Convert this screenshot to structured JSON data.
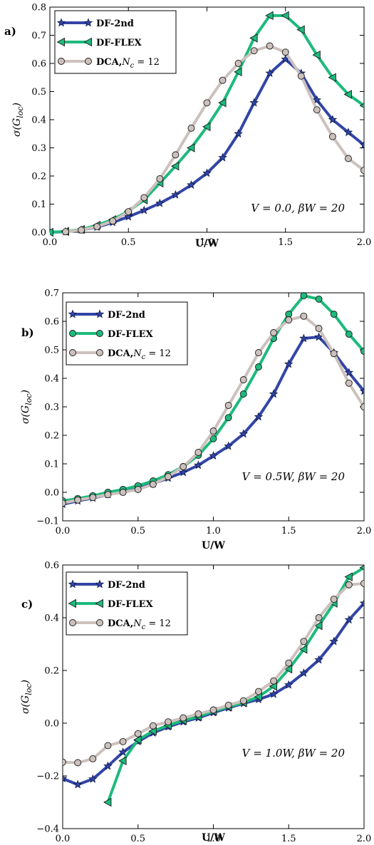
{
  "chart_data": [
    {
      "type": "line",
      "panel_label": "a)",
      "xlabel": "U/W",
      "ylabel": "σ(G_loc)",
      "ylabel_main": "σ(G",
      "ylabel_sub": "loc",
      "ylabel_end": ")",
      "annotation": "V = 0.0, βW = 20",
      "xlim": [
        0.0,
        2.0
      ],
      "ylim": [
        0.0,
        0.8
      ],
      "xticks": [
        "0.0",
        "0.5",
        "1.0",
        "1.5",
        "2.0"
      ],
      "yticks": [
        "0.0",
        "0.1",
        "0.2",
        "0.3",
        "0.4",
        "0.5",
        "0.6",
        "0.7",
        "0.8"
      ],
      "legend_position": "top-left",
      "series": [
        {
          "name": "DF-2nd",
          "color": "#3345a6",
          "marker": "star",
          "x": [
            0.0,
            0.1,
            0.2,
            0.3,
            0.4,
            0.5,
            0.6,
            0.7,
            0.8,
            0.9,
            1.0,
            1.1,
            1.2,
            1.3,
            1.4,
            1.5,
            1.6,
            1.7,
            1.8,
            1.9,
            2.0
          ],
          "y": [
            0.0,
            0.002,
            0.008,
            0.018,
            0.035,
            0.055,
            0.078,
            0.103,
            0.133,
            0.168,
            0.21,
            0.265,
            0.35,
            0.46,
            0.565,
            0.615,
            0.565,
            0.47,
            0.4,
            0.355,
            0.31
          ]
        },
        {
          "name": "DF-FLEX",
          "color": "#1dba7c",
          "marker": "triangle-left",
          "x": [
            0.0,
            0.1,
            0.2,
            0.3,
            0.4,
            0.5,
            0.6,
            0.7,
            0.8,
            0.9,
            1.0,
            1.1,
            1.2,
            1.3,
            1.4,
            1.5,
            1.6,
            1.7,
            1.8,
            1.9,
            2.0
          ],
          "y": [
            0.0,
            0.003,
            0.01,
            0.025,
            0.045,
            0.075,
            0.115,
            0.175,
            0.235,
            0.3,
            0.375,
            0.46,
            0.57,
            0.69,
            0.77,
            0.77,
            0.72,
            0.63,
            0.55,
            0.49,
            0.45
          ]
        },
        {
          "name": "DCA,",
          "name_math": "N",
          "name_sub": "c",
          "name_tail": " = 12",
          "color": "#ccc1bd",
          "marker": "circle",
          "x": [
            0.1,
            0.2,
            0.3,
            0.4,
            0.5,
            0.6,
            0.7,
            0.8,
            0.9,
            1.0,
            1.1,
            1.2,
            1.3,
            1.4,
            1.5,
            1.6,
            1.7,
            1.8,
            1.9,
            2.0
          ],
          "y": [
            0.002,
            0.008,
            0.02,
            0.04,
            0.073,
            0.123,
            0.19,
            0.275,
            0.37,
            0.46,
            0.54,
            0.6,
            0.645,
            0.662,
            0.64,
            0.555,
            0.435,
            0.34,
            0.262,
            0.22
          ]
        }
      ]
    },
    {
      "type": "line",
      "panel_label": "b)",
      "xlabel": "U/W",
      "ylabel": "σ(G_loc)",
      "ylabel_main": "σ(G",
      "ylabel_sub": "loc",
      "ylabel_end": ")",
      "annotation": "V = 0.5W, βW = 20",
      "xlim": [
        0.0,
        2.0
      ],
      "ylim": [
        -0.1,
        0.7
      ],
      "xticks": [
        "0.0",
        "0.5",
        "1.0",
        "1.5",
        "2.0"
      ],
      "yticks": [
        "−0.1",
        "0.0",
        "0.1",
        "0.2",
        "0.3",
        "0.4",
        "0.5",
        "0.6",
        "0.7"
      ],
      "legend_position": "top-left",
      "series": [
        {
          "name": "DF-2nd",
          "color": "#3345a6",
          "marker": "star",
          "x": [
            0.0,
            0.1,
            0.2,
            0.3,
            0.4,
            0.5,
            0.6,
            0.7,
            0.8,
            0.9,
            1.0,
            1.1,
            1.2,
            1.3,
            1.4,
            1.5,
            1.6,
            1.7,
            1.8,
            1.9,
            2.0
          ],
          "y": [
            -0.042,
            -0.03,
            -0.02,
            -0.008,
            0.003,
            0.015,
            0.03,
            0.05,
            0.07,
            0.095,
            0.128,
            0.162,
            0.205,
            0.265,
            0.345,
            0.45,
            0.54,
            0.545,
            0.49,
            0.42,
            0.355
          ]
        },
        {
          "name": "DF-FLEX",
          "color": "#1dba7c",
          "marker": "circle",
          "x": [
            0.0,
            0.1,
            0.2,
            0.3,
            0.4,
            0.5,
            0.6,
            0.7,
            0.8,
            0.9,
            1.0,
            1.1,
            1.2,
            1.3,
            1.4,
            1.5,
            1.6,
            1.7,
            1.8,
            1.9,
            2.0
          ],
          "y": [
            -0.03,
            -0.022,
            -0.012,
            0.0,
            0.01,
            0.023,
            0.04,
            0.062,
            0.09,
            0.13,
            0.188,
            0.262,
            0.345,
            0.44,
            0.54,
            0.625,
            0.69,
            0.678,
            0.625,
            0.555,
            0.495
          ]
        },
        {
          "name": "DCA,",
          "name_math": "N",
          "name_sub": "c",
          "name_tail": " = 12",
          "color": "#ccc1bd",
          "marker": "circle",
          "x": [
            0.0,
            0.1,
            0.2,
            0.3,
            0.4,
            0.5,
            0.6,
            0.7,
            0.8,
            0.9,
            1.0,
            1.1,
            1.2,
            1.3,
            1.4,
            1.5,
            1.6,
            1.7,
            1.8,
            1.9,
            2.0
          ],
          "y": [
            -0.038,
            -0.027,
            -0.018,
            -0.008,
            0.0,
            0.01,
            0.028,
            0.055,
            0.09,
            0.14,
            0.215,
            0.305,
            0.395,
            0.49,
            0.56,
            0.605,
            0.618,
            0.575,
            0.487,
            0.383,
            0.3
          ]
        }
      ]
    },
    {
      "type": "line",
      "panel_label": "c)",
      "xlabel": "U/W",
      "ylabel": "σ(G_loc)",
      "ylabel_main": "σ(G",
      "ylabel_sub": "loc",
      "ylabel_end": ")",
      "annotation": "V = 1.0W, βW = 20",
      "xlim": [
        0.0,
        2.0
      ],
      "ylim": [
        -0.4,
        0.6
      ],
      "xticks": [
        "0.0",
        "0.5",
        "1.0",
        "1.5",
        "2.0"
      ],
      "yticks": [
        "−0.4",
        "−0.2",
        "0.0",
        "0.2",
        "0.4",
        "0.6"
      ],
      "legend_position": "top-left",
      "series": [
        {
          "name": "DF-2nd",
          "color": "#3345a6",
          "marker": "star",
          "x": [
            0.0,
            0.1,
            0.2,
            0.3,
            0.4,
            0.5,
            0.6,
            0.7,
            0.8,
            0.9,
            1.0,
            1.1,
            1.2,
            1.3,
            1.4,
            1.5,
            1.6,
            1.7,
            1.8,
            1.9,
            2.0
          ],
          "y": [
            -0.21,
            -0.233,
            -0.212,
            -0.163,
            -0.11,
            -0.07,
            -0.037,
            -0.014,
            0.005,
            0.02,
            0.04,
            0.058,
            0.075,
            0.09,
            0.11,
            0.145,
            0.19,
            0.24,
            0.31,
            0.392,
            0.455
          ]
        },
        {
          "name": "DF-FLEX",
          "color": "#1dba7c",
          "marker": "triangle-left",
          "x": [
            0.3,
            0.4,
            0.5,
            0.6,
            0.7,
            0.8,
            0.9,
            1.0,
            1.1,
            1.2,
            1.3,
            1.4,
            1.5,
            1.6,
            1.7,
            1.8,
            1.9,
            2.0
          ],
          "y": [
            -0.3,
            -0.143,
            -0.063,
            -0.03,
            -0.008,
            0.01,
            0.025,
            0.045,
            0.062,
            0.078,
            0.1,
            0.14,
            0.205,
            0.28,
            0.37,
            0.455,
            0.555,
            0.59
          ]
        },
        {
          "name": "DCA,",
          "name_math": "N",
          "name_sub": "c",
          "name_tail": " = 12",
          "color": "#ccc1bd",
          "marker": "circle",
          "x": [
            0.0,
            0.1,
            0.2,
            0.3,
            0.4,
            0.5,
            0.6,
            0.7,
            0.8,
            0.9,
            1.0,
            1.1,
            1.2,
            1.3,
            1.4,
            1.5,
            1.6,
            1.7,
            1.8,
            1.9,
            2.0
          ],
          "y": [
            -0.148,
            -0.15,
            -0.135,
            -0.085,
            -0.07,
            -0.04,
            -0.01,
            0.005,
            0.02,
            0.035,
            0.05,
            0.068,
            0.085,
            0.12,
            0.16,
            0.228,
            0.31,
            0.4,
            0.47,
            0.525,
            0.53
          ]
        }
      ]
    }
  ]
}
